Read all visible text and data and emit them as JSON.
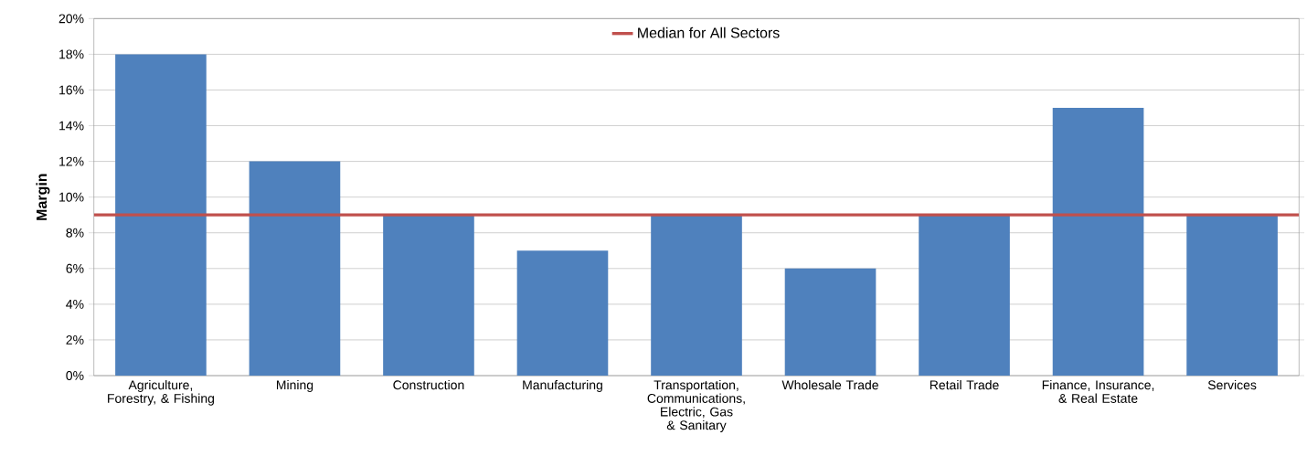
{
  "chart_data": {
    "type": "bar",
    "ylabel": "Margin",
    "categories": [
      "Agriculture, Forestry, & Fishing",
      "Mining",
      "Construction",
      "Manufacturing",
      "Transportation, Communications, Electric, Gas & Sanitary",
      "Wholesale Trade",
      "Retail Trade",
      "Finance, Insurance, & Real Estate",
      "Services"
    ],
    "values": [
      18,
      12,
      9,
      7,
      9,
      6,
      9,
      15,
      9
    ],
    "color": "#4f81bd",
    "ylim": [
      0,
      20
    ],
    "yticks": [
      {
        "value": 0,
        "label": "0%"
      },
      {
        "value": 2,
        "label": "2%"
      },
      {
        "value": 4,
        "label": "4%"
      },
      {
        "value": 6,
        "label": "6%"
      },
      {
        "value": 8,
        "label": "8%"
      },
      {
        "value": 10,
        "label": "10%"
      },
      {
        "value": 12,
        "label": "12%"
      },
      {
        "value": 14,
        "label": "14%"
      },
      {
        "value": 16,
        "label": "16%"
      },
      {
        "value": 18,
        "label": "18%"
      },
      {
        "value": 20,
        "label": "20%"
      }
    ],
    "ref_lines": [
      {
        "axis": "y",
        "value": 9,
        "label": "Median for All Sectors",
        "color": "#c0504d"
      }
    ],
    "grid": "y",
    "legend": "top"
  }
}
